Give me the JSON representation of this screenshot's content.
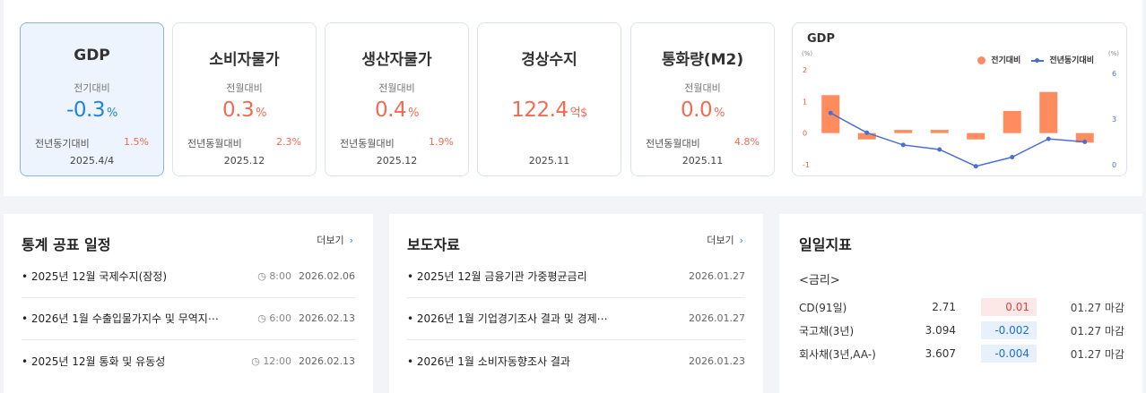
{
  "cards": [
    {
      "title": "GDP",
      "sublabel": "전기대비",
      "value": "-0.3",
      "unit": "%",
      "yoy_label": "전년동기대비",
      "yoy_value": "1.5%",
      "date": "2025.4/4"
    },
    {
      "title": "소비자물가",
      "sublabel": "전월대비",
      "value": "0.3",
      "unit": "%",
      "yoy_label": "전년동월대비",
      "yoy_value": "2.3%",
      "date": "2025.12"
    },
    {
      "title": "생산자물가",
      "sublabel": "전월대비",
      "value": "0.4",
      "unit": "%",
      "yoy_label": "전년동월대비",
      "yoy_value": "1.9%",
      "date": "2025.12"
    },
    {
      "title": "경상수지",
      "sublabel": "",
      "value": "122.4",
      "unit": "억$",
      "yoy_label": "",
      "yoy_value": "",
      "date": "2025.11"
    },
    {
      "title": "통화량(M2)",
      "sublabel": "전월대비",
      "value": "0.0",
      "unit": "%",
      "yoy_label": "전년동월대비",
      "yoy_value": "4.8%",
      "date": "2025.11"
    }
  ],
  "chart": {
    "title": "GDP",
    "legend_bar": "전기대비",
    "legend_line": "전년동기대비",
    "unit_left": "(%)",
    "unit_right": "(%)",
    "left_ticks": [
      "2",
      "1",
      "0",
      "-1"
    ],
    "right_ticks": [
      "6",
      "3",
      "0"
    ]
  },
  "chart_data": {
    "type": "bar",
    "series": [
      {
        "name": "전기대비",
        "type": "bar",
        "axis": "left",
        "values": [
          1.2,
          -0.2,
          0.1,
          0.1,
          -0.2,
          0.7,
          1.3,
          -0.3
        ]
      },
      {
        "name": "전년동기대비",
        "type": "line",
        "axis": "right",
        "values": [
          3.4,
          2.1,
          1.3,
          1.0,
          -0.1,
          0.5,
          1.7,
          1.5
        ]
      }
    ],
    "ylim_left": [
      -1,
      2
    ],
    "ylim_right": [
      0,
      6
    ],
    "colors": {
      "bar": "#ff8c5f",
      "line": "#4a6fd0"
    }
  },
  "schedule": {
    "title": "통계 공표 일정",
    "more": "더보기",
    "items": [
      {
        "text": "• 2025년 12월 국제수지(잠정)",
        "time": "8:00",
        "date": "2026.02.06"
      },
      {
        "text": "• 2026년 1월 수출입물가지수 및 무역지⋯",
        "time": "6:00",
        "date": "2026.02.13"
      },
      {
        "text": "• 2025년 12월 통화 및 유동성",
        "time": "12:00",
        "date": "2026.02.13"
      }
    ]
  },
  "press": {
    "title": "보도자료",
    "more": "더보기",
    "items": [
      {
        "text": "• 2025년 12월 금융기관 가중평균금리",
        "date": "2026.01.27"
      },
      {
        "text": "• 2026년 1월 기업경기조사 결과 및 경제⋯",
        "date": "2026.01.27"
      },
      {
        "text": "• 2026년 1월 소비자동향조사 결과",
        "date": "2026.01.23"
      }
    ]
  },
  "daily": {
    "title": "일일지표",
    "group": "<금리>",
    "rows": [
      {
        "name": "CD(91일)",
        "value": "2.71",
        "change": "0.01",
        "dir": "up",
        "note": "01.27 마감"
      },
      {
        "name": "국고채(3년)",
        "value": "3.094",
        "change": "-0.002",
        "dir": "down",
        "note": "01.27 마감"
      },
      {
        "name": "회사채(3년,AA-)",
        "value": "3.607",
        "change": "-0.004",
        "dir": "down",
        "note": "01.27 마감"
      }
    ]
  }
}
